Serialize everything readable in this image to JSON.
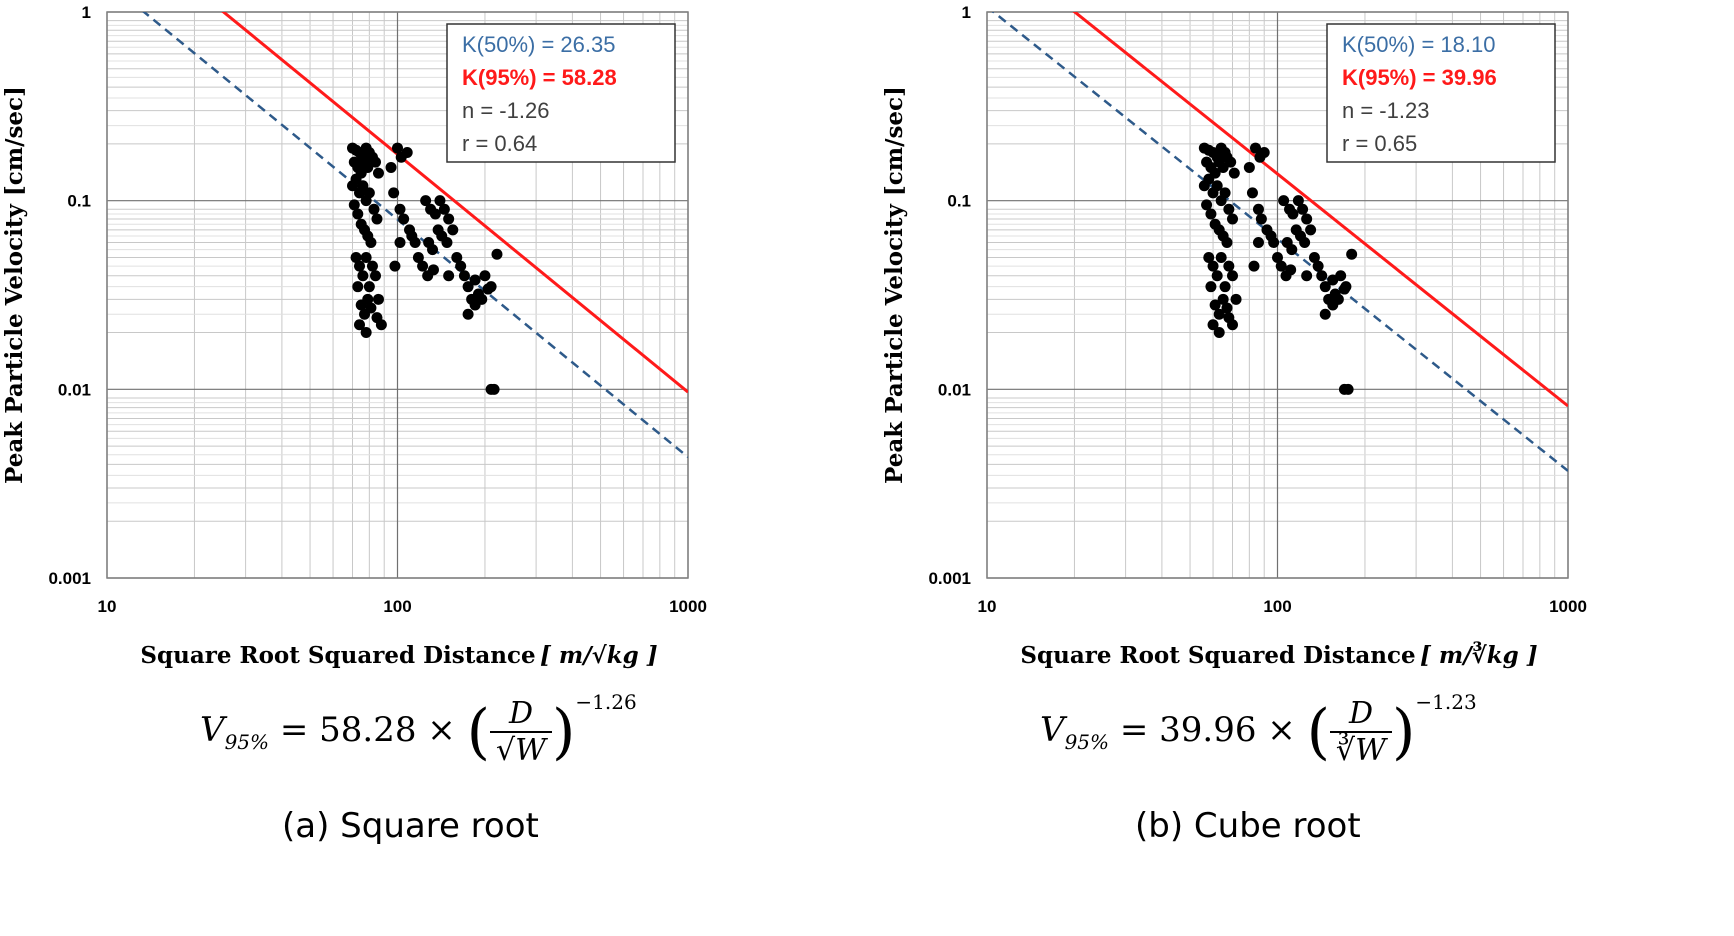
{
  "chart_data": [
    {
      "type": "scatter",
      "ylabel": "Peak Particle Velocity [cm/sec]",
      "xlabel": "Square Root Squared Distance",
      "xlabel_unit": "[ m/√kg ]",
      "xscale": "log",
      "yscale": "log",
      "xlim": [
        10,
        1000
      ],
      "ylim": [
        0.001,
        1
      ],
      "x_ticks": [
        "10",
        "100",
        "1000"
      ],
      "y_ticks": [
        "0.001",
        "0.01",
        "0.1",
        "1"
      ],
      "grid": true,
      "legend_position": "top-right",
      "legend": [
        {
          "text": "K(50%) = 26.35",
          "color": "#3b6ea5",
          "bold": false
        },
        {
          "text": "K(95%) = 58.28",
          "color": "#ff1a1a",
          "bold": true
        },
        {
          "text": "n  =  -1.26",
          "color": "#404040",
          "bold": false
        },
        {
          "text": "r  =  0.64",
          "color": "#404040",
          "bold": false
        }
      ],
      "lines": [
        {
          "label": "K(50%)",
          "K": 26.35,
          "n": -1.26,
          "color": "#2e5a8a",
          "style": "dashed"
        },
        {
          "label": "K(95%)",
          "K": 58.28,
          "n": -1.26,
          "color": "#ff1a1a",
          "style": "solid"
        }
      ],
      "points": [
        [
          70,
          0.19
        ],
        [
          72,
          0.185
        ],
        [
          74,
          0.18
        ],
        [
          76,
          0.17
        ],
        [
          78,
          0.19
        ],
        [
          80,
          0.18
        ],
        [
          71,
          0.16
        ],
        [
          73,
          0.15
        ],
        [
          75,
          0.14
        ],
        [
          77,
          0.16
        ],
        [
          79,
          0.15
        ],
        [
          82,
          0.17
        ],
        [
          84,
          0.16
        ],
        [
          86,
          0.14
        ],
        [
          70,
          0.12
        ],
        [
          72,
          0.13
        ],
        [
          74,
          0.11
        ],
        [
          76,
          0.12
        ],
        [
          78,
          0.1
        ],
        [
          80,
          0.11
        ],
        [
          83,
          0.09
        ],
        [
          85,
          0.08
        ],
        [
          71,
          0.095
        ],
        [
          73,
          0.085
        ],
        [
          75,
          0.075
        ],
        [
          77,
          0.07
        ],
        [
          79,
          0.065
        ],
        [
          81,
          0.06
        ],
        [
          72,
          0.05
        ],
        [
          74,
          0.045
        ],
        [
          76,
          0.04
        ],
        [
          78,
          0.05
        ],
        [
          80,
          0.035
        ],
        [
          82,
          0.045
        ],
        [
          84,
          0.04
        ],
        [
          86,
          0.03
        ],
        [
          73,
          0.035
        ],
        [
          75,
          0.028
        ],
        [
          77,
          0.025
        ],
        [
          79,
          0.03
        ],
        [
          81,
          0.027
        ],
        [
          74,
          0.022
        ],
        [
          78,
          0.02
        ],
        [
          85,
          0.024
        ],
        [
          88,
          0.022
        ],
        [
          95,
          0.15
        ],
        [
          100,
          0.19
        ],
        [
          103,
          0.17
        ],
        [
          108,
          0.18
        ],
        [
          97,
          0.11
        ],
        [
          102,
          0.09
        ],
        [
          105,
          0.08
        ],
        [
          110,
          0.07
        ],
        [
          112,
          0.065
        ],
        [
          115,
          0.06
        ],
        [
          102,
          0.06
        ],
        [
          98,
          0.045
        ],
        [
          125,
          0.1
        ],
        [
          130,
          0.09
        ],
        [
          135,
          0.085
        ],
        [
          140,
          0.1
        ],
        [
          145,
          0.09
        ],
        [
          150,
          0.08
        ],
        [
          138,
          0.07
        ],
        [
          142,
          0.065
        ],
        [
          128,
          0.06
        ],
        [
          132,
          0.055
        ],
        [
          148,
          0.06
        ],
        [
          155,
          0.07
        ],
        [
          160,
          0.05
        ],
        [
          118,
          0.05
        ],
        [
          122,
          0.045
        ],
        [
          127,
          0.04
        ],
        [
          133,
          0.043
        ],
        [
          150,
          0.04
        ],
        [
          165,
          0.045
        ],
        [
          170,
          0.04
        ],
        [
          175,
          0.035
        ],
        [
          180,
          0.03
        ],
        [
          185,
          0.038
        ],
        [
          190,
          0.032
        ],
        [
          200,
          0.04
        ],
        [
          210,
          0.035
        ],
        [
          220,
          0.052
        ],
        [
          175,
          0.025
        ],
        [
          185,
          0.028
        ],
        [
          195,
          0.03
        ],
        [
          205,
          0.034
        ],
        [
          210,
          0.01
        ],
        [
          215,
          0.01
        ]
      ]
    },
    {
      "type": "scatter",
      "ylabel": "Peak Particle Velocity [cm/sec]",
      "xlabel": "Square Root Squared Distance",
      "xlabel_unit": "[ m/∛kg ]",
      "xscale": "log",
      "yscale": "log",
      "xlim": [
        10,
        1000
      ],
      "ylim": [
        0.001,
        1
      ],
      "x_ticks": [
        "10",
        "100",
        "1000"
      ],
      "y_ticks": [
        "0.001",
        "0.01",
        "0.1",
        "1"
      ],
      "grid": true,
      "legend_position": "top-right",
      "legend": [
        {
          "text": "K(50%) = 18.10",
          "color": "#3b6ea5",
          "bold": false
        },
        {
          "text": "K(95%) = 39.96",
          "color": "#ff1a1a",
          "bold": true
        },
        {
          "text": "n  =  -1.23",
          "color": "#404040",
          "bold": false
        },
        {
          "text": "r  =  0.65",
          "color": "#404040",
          "bold": false
        }
      ],
      "lines": [
        {
          "label": "K(50%)",
          "K": 18.1,
          "n": -1.23,
          "color": "#2e5a8a",
          "style": "dashed"
        },
        {
          "label": "K(95%)",
          "K": 39.96,
          "n": -1.23,
          "color": "#ff1a1a",
          "style": "solid"
        }
      ],
      "points": [
        [
          56,
          0.19
        ],
        [
          58,
          0.185
        ],
        [
          60,
          0.18
        ],
        [
          62,
          0.17
        ],
        [
          64,
          0.19
        ],
        [
          66,
          0.18
        ],
        [
          57,
          0.16
        ],
        [
          59,
          0.15
        ],
        [
          61,
          0.14
        ],
        [
          63,
          0.16
        ],
        [
          65,
          0.15
        ],
        [
          67,
          0.17
        ],
        [
          69,
          0.16
        ],
        [
          71,
          0.14
        ],
        [
          56,
          0.12
        ],
        [
          58,
          0.13
        ],
        [
          60,
          0.11
        ],
        [
          62,
          0.12
        ],
        [
          64,
          0.1
        ],
        [
          66,
          0.11
        ],
        [
          68,
          0.09
        ],
        [
          70,
          0.08
        ],
        [
          57,
          0.095
        ],
        [
          59,
          0.085
        ],
        [
          61,
          0.075
        ],
        [
          63,
          0.07
        ],
        [
          65,
          0.065
        ],
        [
          67,
          0.06
        ],
        [
          58,
          0.05
        ],
        [
          60,
          0.045
        ],
        [
          62,
          0.04
        ],
        [
          64,
          0.05
        ],
        [
          66,
          0.035
        ],
        [
          68,
          0.045
        ],
        [
          70,
          0.04
        ],
        [
          72,
          0.03
        ],
        [
          59,
          0.035
        ],
        [
          61,
          0.028
        ],
        [
          63,
          0.025
        ],
        [
          65,
          0.03
        ],
        [
          67,
          0.027
        ],
        [
          60,
          0.022
        ],
        [
          63,
          0.02
        ],
        [
          68,
          0.024
        ],
        [
          70,
          0.022
        ],
        [
          80,
          0.15
        ],
        [
          84,
          0.19
        ],
        [
          87,
          0.17
        ],
        [
          90,
          0.18
        ],
        [
          82,
          0.11
        ],
        [
          86,
          0.09
        ],
        [
          88,
          0.08
        ],
        [
          92,
          0.07
        ],
        [
          95,
          0.065
        ],
        [
          97,
          0.06
        ],
        [
          86,
          0.06
        ],
        [
          83,
          0.045
        ],
        [
          105,
          0.1
        ],
        [
          110,
          0.09
        ],
        [
          113,
          0.085
        ],
        [
          118,
          0.1
        ],
        [
          122,
          0.09
        ],
        [
          126,
          0.08
        ],
        [
          116,
          0.07
        ],
        [
          120,
          0.065
        ],
        [
          108,
          0.06
        ],
        [
          112,
          0.055
        ],
        [
          124,
          0.06
        ],
        [
          130,
          0.07
        ],
        [
          134,
          0.05
        ],
        [
          100,
          0.05
        ],
        [
          103,
          0.045
        ],
        [
          107,
          0.04
        ],
        [
          111,
          0.043
        ],
        [
          126,
          0.04
        ],
        [
          138,
          0.045
        ],
        [
          142,
          0.04
        ],
        [
          146,
          0.035
        ],
        [
          150,
          0.03
        ],
        [
          155,
          0.038
        ],
        [
          158,
          0.032
        ],
        [
          165,
          0.04
        ],
        [
          172,
          0.035
        ],
        [
          180,
          0.052
        ],
        [
          146,
          0.025
        ],
        [
          155,
          0.028
        ],
        [
          162,
          0.03
        ],
        [
          170,
          0.034
        ],
        [
          170,
          0.01
        ],
        [
          175,
          0.01
        ]
      ]
    }
  ],
  "formulas": [
    {
      "lhs": "V",
      "sub": "95%",
      "eq": "= 58.28 ×",
      "num": "D",
      "den": "√W",
      "exp": "−1.26"
    },
    {
      "lhs": "V",
      "sub": "95%",
      "eq": "= 39.96 ×",
      "num": "D",
      "den": "∛W",
      "exp": "−1.23"
    }
  ],
  "captions": [
    "(a) Square root",
    "(b) Cube root"
  ]
}
